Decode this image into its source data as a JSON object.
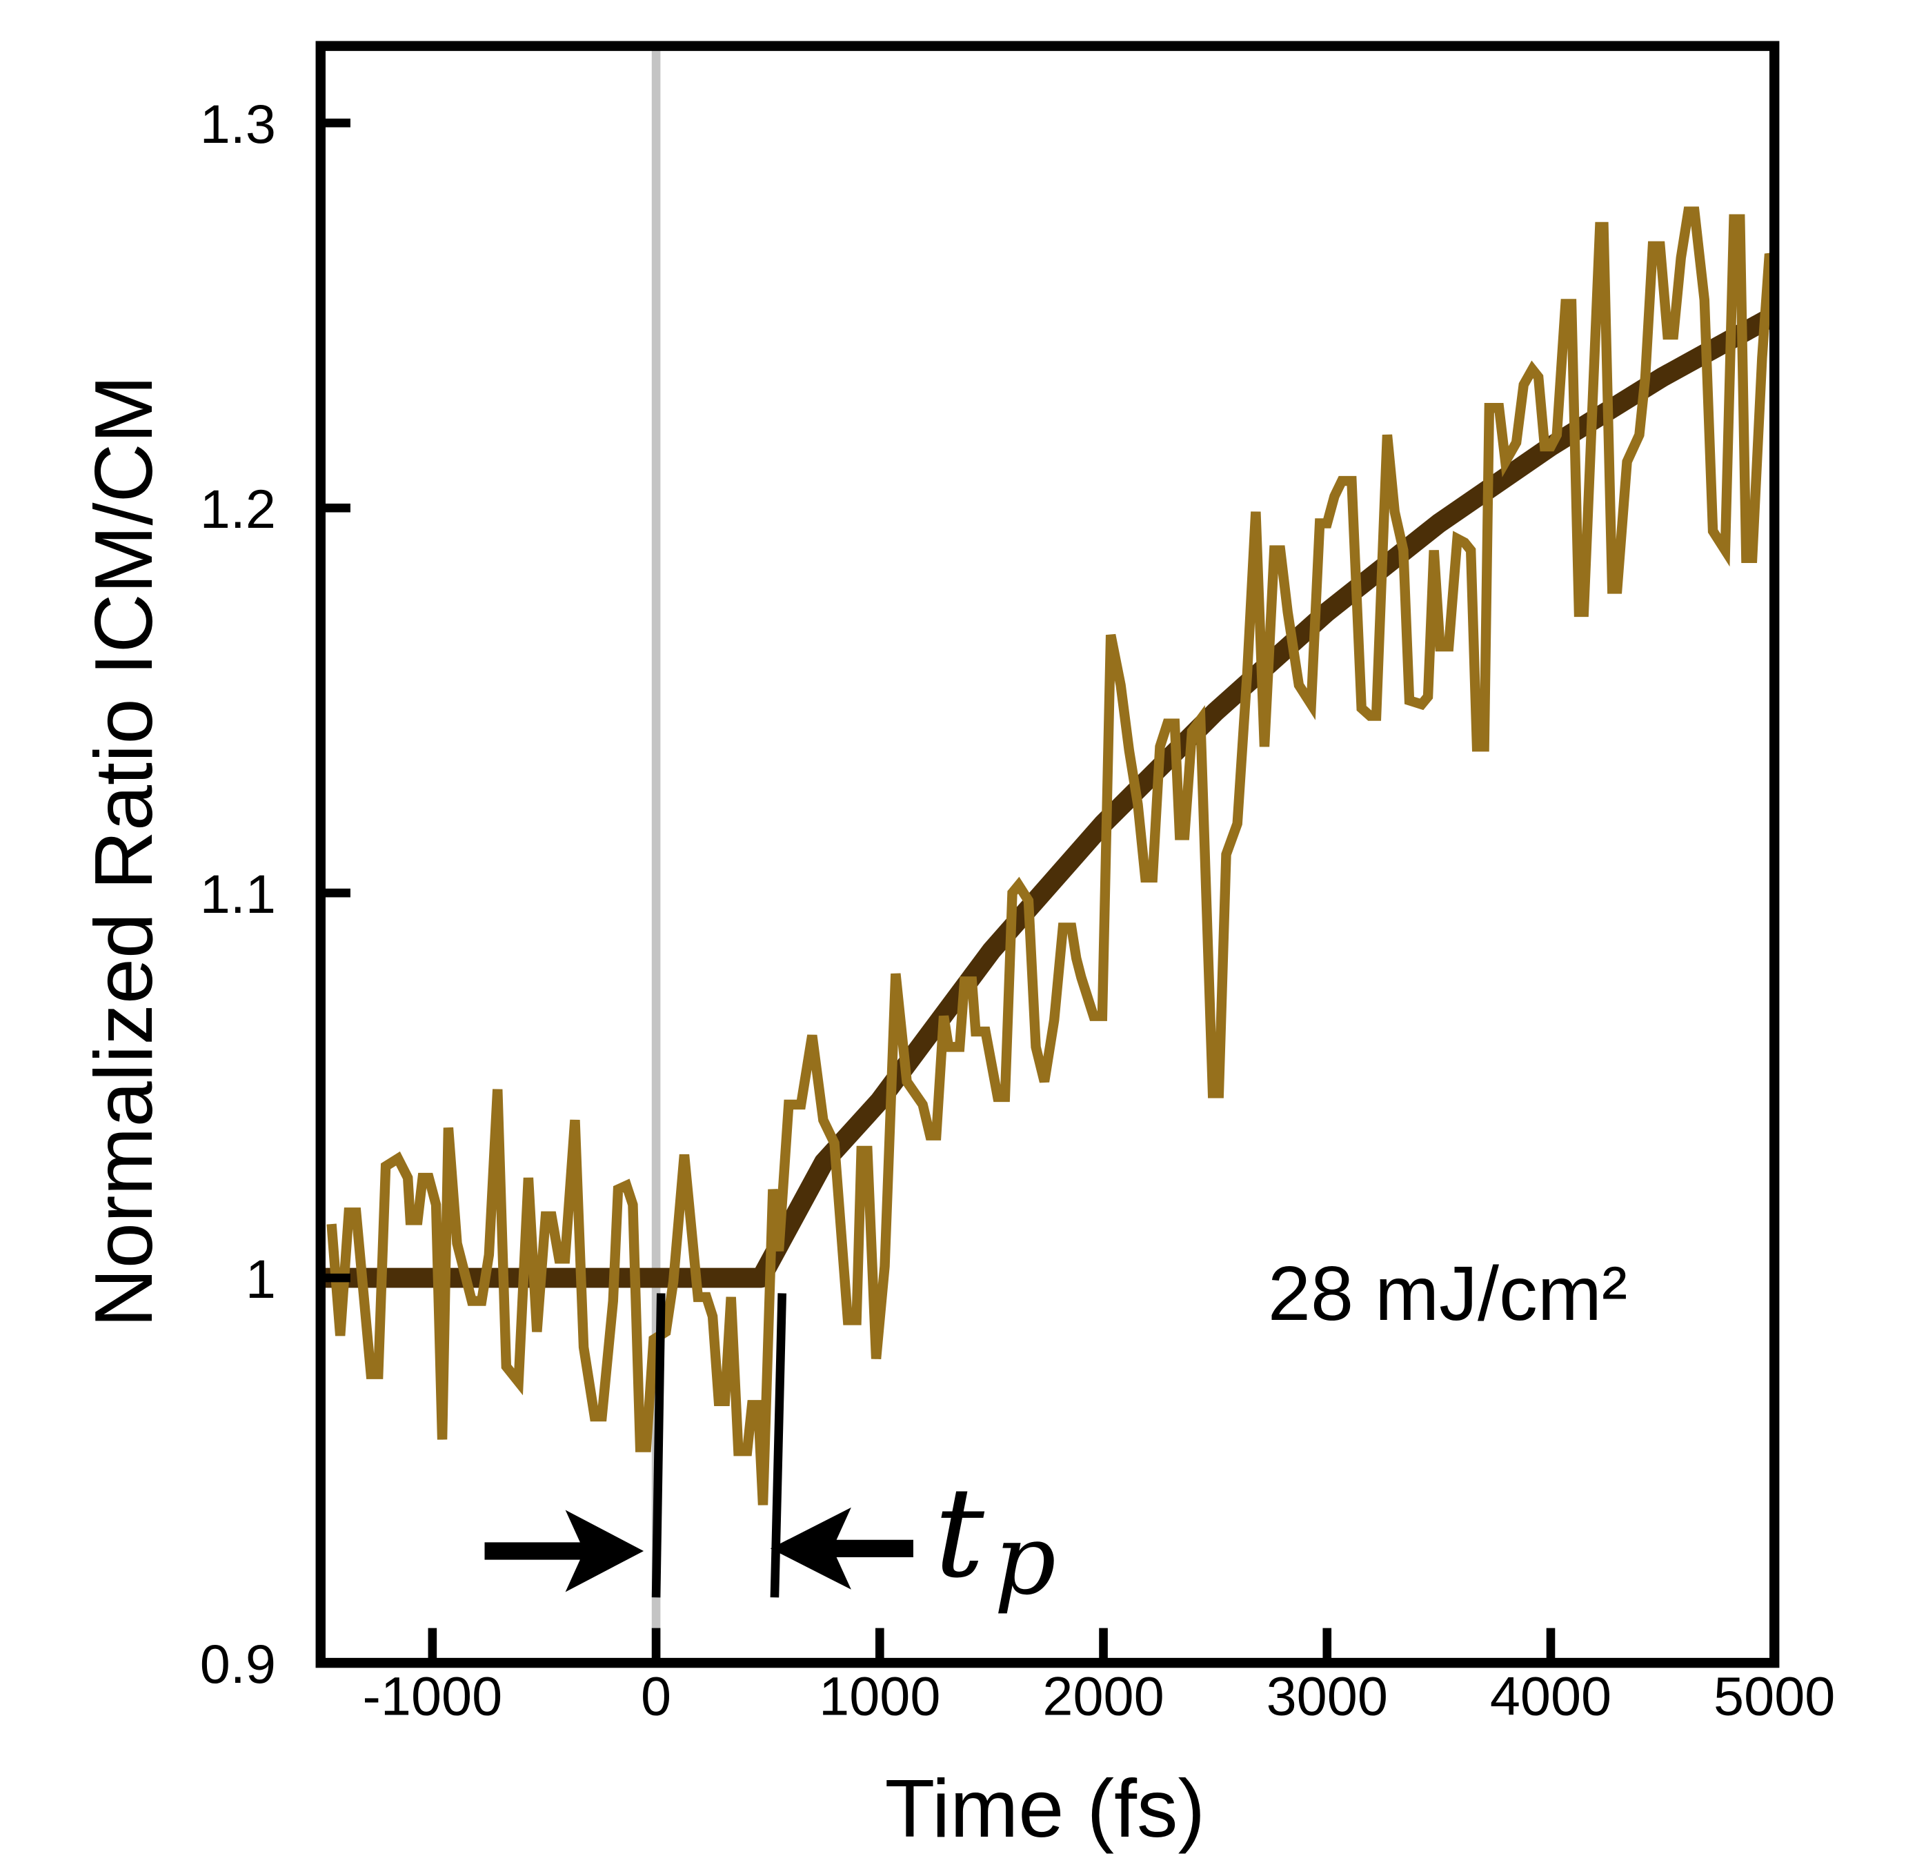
{
  "chart_data": {
    "type": "line",
    "title": "",
    "xlabel": "Time (fs)",
    "ylabel": "Normalized Ratio ICM/CM",
    "xlim": [
      -1500,
      5000
    ],
    "ylim": [
      0.9,
      1.32
    ],
    "grid": false,
    "xticks": [
      "-1000",
      "0",
      "1000",
      "2000",
      "3000",
      "4000",
      "5000"
    ],
    "xtick_values": [
      -1000,
      0,
      1000,
      2000,
      3000,
      4000,
      5000
    ],
    "yticks": [
      "0.9",
      "1",
      "1.1",
      "1.2",
      "1.3"
    ],
    "ytick_values": [
      0.9,
      1.0,
      1.1,
      1.2,
      1.3
    ],
    "colors": {
      "data": "#96701c",
      "fit": "#4b2f08",
      "zero_line": "#c4c4c4",
      "axes": "#000000"
    },
    "series": [
      {
        "role": "data",
        "x": [
          -1451,
          -1412,
          -1374,
          -1341,
          -1275,
          -1242,
          -1209,
          -1154,
          -1110,
          -1099,
          -1066,
          -1044,
          -1016,
          -984,
          -956,
          -929,
          -890,
          -824,
          -780,
          -747,
          -709,
          -670,
          -615,
          -571,
          -533,
          -494,
          -467,
          -434,
          -407,
          -363,
          -324,
          -275,
          -242,
          -192,
          -170,
          -132,
          -104,
          -71,
          -44,
          -11,
          44,
          77,
          126,
          187,
          225,
          253,
          280,
          308,
          335,
          368,
          407,
          429,
          456,
          478,
          522,
          549,
          593,
          648,
          698,
          747,
          797,
          857,
          896,
          918,
          945,
          984,
          1022,
          1071,
          1121,
          1192,
          1225,
          1253,
          1286,
          1308,
          1357,
          1379,
          1412,
          1429,
          1473,
          1527,
          1560,
          1593,
          1621,
          1665,
          1698,
          1736,
          1780,
          1819,
          1857,
          1879,
          1901,
          1956,
          1995,
          2033,
          2077,
          2115,
          2154,
          2187,
          2220,
          2253,
          2286,
          2319,
          2341,
          2363,
          2396,
          2434,
          2489,
          2516,
          2549,
          2599,
          2643,
          2681,
          2720,
          2764,
          2791,
          2824,
          2874,
          2929,
          2967,
          3000,
          3033,
          3066,
          3110,
          3154,
          3192,
          3220,
          3269,
          3302,
          3341,
          3368,
          3423,
          3451,
          3478,
          3505,
          3544,
          3582,
          3615,
          3643,
          3670,
          3703,
          3725,
          3769,
          3797,
          3846,
          3879,
          3918,
          3945,
          3973,
          4000,
          4027,
          4066,
          4093,
          4126,
          4148,
          4220,
          4236,
          4275,
          4297,
          4341,
          4396,
          4423,
          4456,
          4489,
          4522,
          4549,
          4582,
          4615,
          4643,
          4687,
          4725,
          4780,
          4819,
          4846,
          4874,
          4901,
          4945,
          4978,
          5000
        ],
        "y": [
          1.014,
          0.985,
          1.017,
          1.017,
          0.975,
          0.975,
          1.029,
          1.031,
          1.026,
          1.015,
          1.015,
          1.026,
          1.026,
          1.019,
          0.958,
          1.039,
          1.009,
          0.994,
          0.994,
          1.006,
          1.049,
          0.977,
          0.973,
          1.026,
          0.986,
          1.016,
          1.016,
          1.005,
          1.005,
          1.041,
          0.982,
          0.964,
          0.964,
          0.994,
          1.023,
          1.024,
          1.019,
          0.956,
          0.956,
          0.984,
          0.986,
          0.999,
          1.032,
          0.995,
          0.995,
          0.99,
          0.968,
          0.968,
          0.995,
          0.955,
          0.955,
          0.967,
          0.967,
          0.941,
          1.023,
          1.007,
          1.045,
          1.045,
          1.063,
          1.041,
          1.035,
          0.989,
          0.989,
          1.033,
          1.033,
          0.979,
          1.003,
          1.079,
          1.051,
          1.045,
          1.037,
          1.037,
          1.068,
          1.06,
          1.06,
          1.077,
          1.077,
          1.064,
          1.064,
          1.047,
          1.047,
          1.1,
          1.102,
          1.098,
          1.06,
          1.051,
          1.067,
          1.091,
          1.091,
          1.083,
          1.078,
          1.068,
          1.068,
          1.167,
          1.154,
          1.137,
          1.123,
          1.104,
          1.104,
          1.138,
          1.144,
          1.144,
          1.115,
          1.115,
          1.142,
          1.145,
          1.048,
          1.048,
          1.11,
          1.118,
          1.157,
          1.199,
          1.138,
          1.189,
          1.189,
          1.173,
          1.154,
          1.149,
          1.196,
          1.196,
          1.203,
          1.207,
          1.207,
          1.148,
          1.146,
          1.146,
          1.219,
          1.199,
          1.189,
          1.15,
          1.149,
          1.151,
          1.189,
          1.164,
          1.164,
          1.192,
          1.191,
          1.189,
          1.138,
          1.138,
          1.226,
          1.226,
          1.212,
          1.217,
          1.232,
          1.236,
          1.234,
          1.216,
          1.216,
          1.219,
          1.253,
          1.253,
          1.173,
          1.173,
          1.273,
          1.273,
          1.179,
          1.179,
          1.212,
          1.219,
          1.234,
          1.268,
          1.268,
          1.245,
          1.245,
          1.265,
          1.277,
          1.277,
          1.254,
          1.194,
          1.189,
          1.275,
          1.275,
          1.187,
          1.187,
          1.239,
          1.266,
          1.262
        ]
      },
      {
        "role": "fit",
        "x": [
          -1500,
          470,
          750,
          1000,
          1500,
          2000,
          2500,
          3000,
          3500,
          4000,
          4500,
          5000
        ],
        "y": [
          1.0,
          1.0,
          1.03,
          1.046,
          1.085,
          1.118,
          1.147,
          1.173,
          1.196,
          1.216,
          1.234,
          1.25
        ]
      }
    ],
    "vlines": [
      {
        "x": 0,
        "color": "#c4c4c4"
      }
    ],
    "annotations": {
      "fluence": "28 mJ/cm²",
      "tp_base": "t",
      "tp_sub": "p",
      "tp_marker_times": [
        0,
        530
      ]
    }
  }
}
